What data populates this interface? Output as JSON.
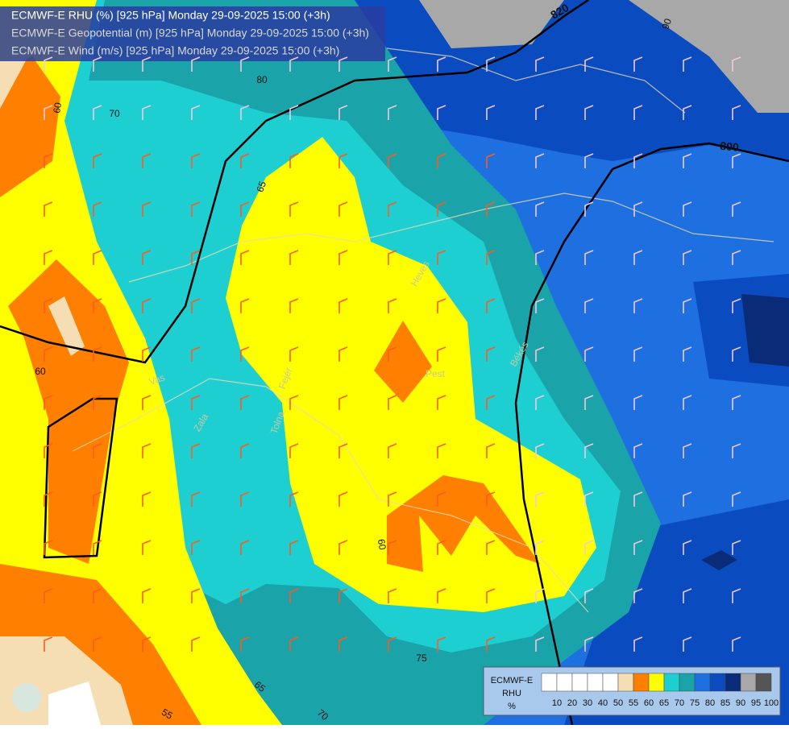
{
  "header": {
    "lines": [
      "ECMWF-E RHU (%) [925 hPa] Monday 29-09-2025 15:00 (+3h)",
      "ECMWF-E Geopotential (m) [925 hPa] Monday 29-09-2025 15:00 (+3h)",
      "ECMWF-E Wind (m/s) [925 hPa] Monday 29-09-2025 15:00 (+3h)"
    ]
  },
  "contour_labels": [
    "820",
    "800",
    "80",
    "70",
    "65",
    "60",
    "60",
    "60",
    "75",
    "55",
    "65",
    "70",
    "90"
  ],
  "place_labels": [
    "Vas",
    "Zala",
    "Tolna",
    "Fejér",
    "Pest",
    "Heves",
    "Békés"
  ],
  "legend": {
    "title": [
      "ECMWF-E",
      "RHU",
      "%"
    ],
    "labels": [
      "10",
      "20",
      "30",
      "40",
      "50",
      "55",
      "60",
      "65",
      "70",
      "75",
      "80",
      "85",
      "90",
      "95",
      "100"
    ],
    "colors": [
      "#ffffff",
      "#ffffff",
      "#ffffff",
      "#ffffff",
      "#ffffff",
      "#f5deb3",
      "#ff8000",
      "#ffff00",
      "#1ecfd2",
      "#1aa3a8",
      "#1e6fe0",
      "#0a4cc0",
      "#0a2c78",
      "#a8a8a8",
      "#555555"
    ]
  }
}
